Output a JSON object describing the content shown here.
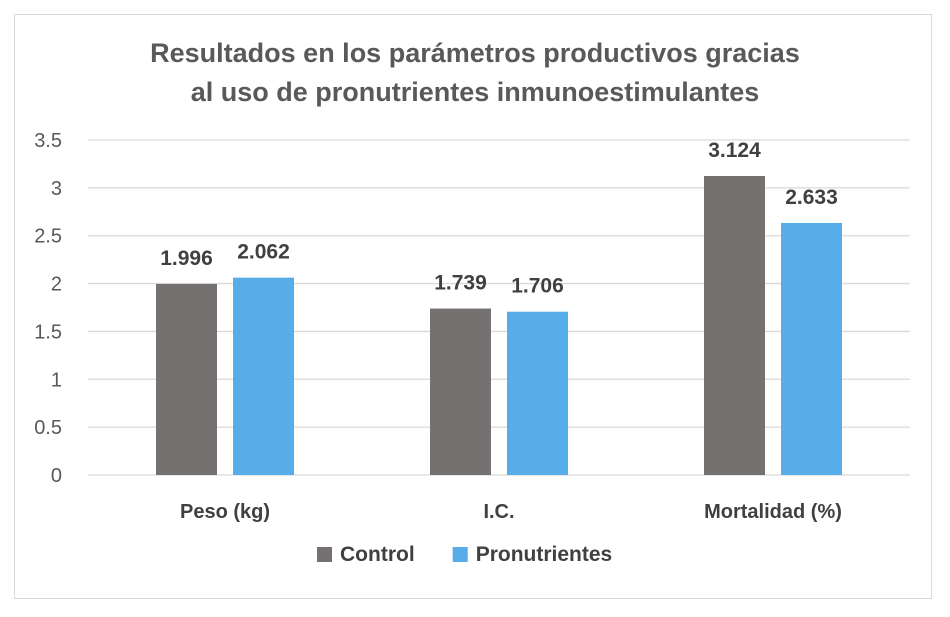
{
  "chart_data": {
    "type": "bar",
    "title": "Resultados en los parámetros productivos gracias\nal uso de pronutrientes inmunoestimulantes",
    "categories": [
      "Peso (kg)",
      "I.C.",
      "Mortalidad (%)"
    ],
    "series": [
      {
        "name": "Control",
        "values": [
          1.996,
          1.739,
          3.124
        ],
        "labels": [
          "1.996",
          "1.739",
          "3.124"
        ],
        "color": "#767171"
      },
      {
        "name": "Pronutrientes",
        "values": [
          2.062,
          1.706,
          2.633
        ],
        "labels": [
          "2.062",
          "1.706",
          "2.633"
        ],
        "color": "#56ADE8"
      }
    ],
    "ylim": [
      0,
      3.5
    ],
    "yticks": [
      "0",
      "0.5",
      "1",
      "1.5",
      "2",
      "2.5",
      "3",
      "3.5"
    ],
    "grid": true,
    "gridColor": "#d9d9d9",
    "legend": "bottom"
  }
}
